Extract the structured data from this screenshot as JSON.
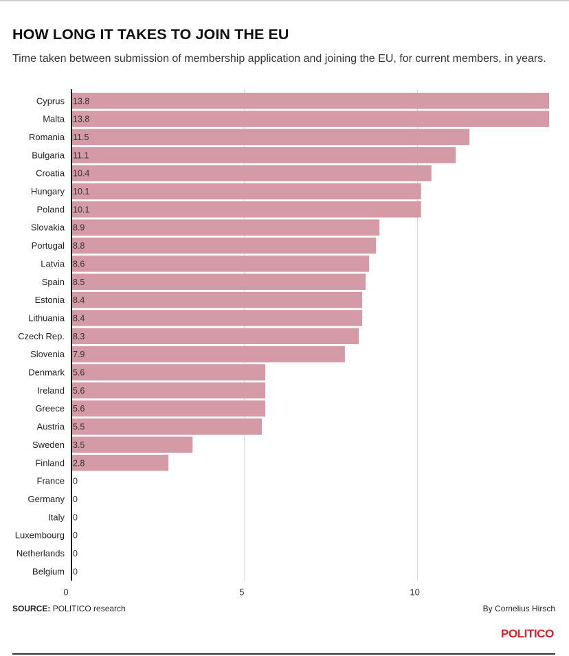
{
  "header": {
    "title": "HOW LONG IT TAKES TO JOIN THE EU",
    "subtitle": "Time taken between submission of membership application and joining the EU, for current members, in years."
  },
  "footer": {
    "source_label": "SOURCE:",
    "source_text": "POLITICO research",
    "byline": "By Cornelius Hirsch",
    "brand": "POLITICO"
  },
  "colors": {
    "bar": "#d49aa5",
    "gridline": "#d3d3d3",
    "axis": "#111111",
    "brand": "#d8232a"
  },
  "chart_data": {
    "type": "bar",
    "orientation": "horizontal",
    "title": "HOW LONG IT TAKES TO JOIN THE EU",
    "xlabel": "",
    "ylabel": "",
    "xlim": [
      0,
      13.8
    ],
    "xticks": [
      0,
      5,
      10
    ],
    "grid": true,
    "categories": [
      "Cyprus",
      "Malta",
      "Romania",
      "Bulgaria",
      "Croatia",
      "Hungary",
      "Poland",
      "Slovakia",
      "Portugal",
      "Latvia",
      "Spain",
      "Estonia",
      "Lithuania",
      "Czech Rep.",
      "Slovenia",
      "Denmark",
      "Ireland",
      "Greece",
      "Austria",
      "Sweden",
      "Finland",
      "France",
      "Germany",
      "Italy",
      "Luxembourg",
      "Netherlands",
      "Belgium"
    ],
    "values": [
      13.8,
      13.8,
      11.5,
      11.1,
      10.4,
      10.1,
      10.1,
      8.9,
      8.8,
      8.6,
      8.5,
      8.4,
      8.4,
      8.3,
      7.9,
      5.6,
      5.6,
      5.6,
      5.5,
      3.5,
      2.8,
      0,
      0,
      0,
      0,
      0,
      0
    ],
    "value_labels": [
      "13.8",
      "13.8",
      "11.5",
      "11.1",
      "10.4",
      "10.1",
      "10.1",
      "8.9",
      "8.8",
      "8.6",
      "8.5",
      "8.4",
      "8.4",
      "8.3",
      "7.9",
      "5.6",
      "5.6",
      "5.6",
      "5.5",
      "3.5",
      "2.8",
      "0",
      "0",
      "0",
      "0",
      "0",
      "0"
    ]
  }
}
